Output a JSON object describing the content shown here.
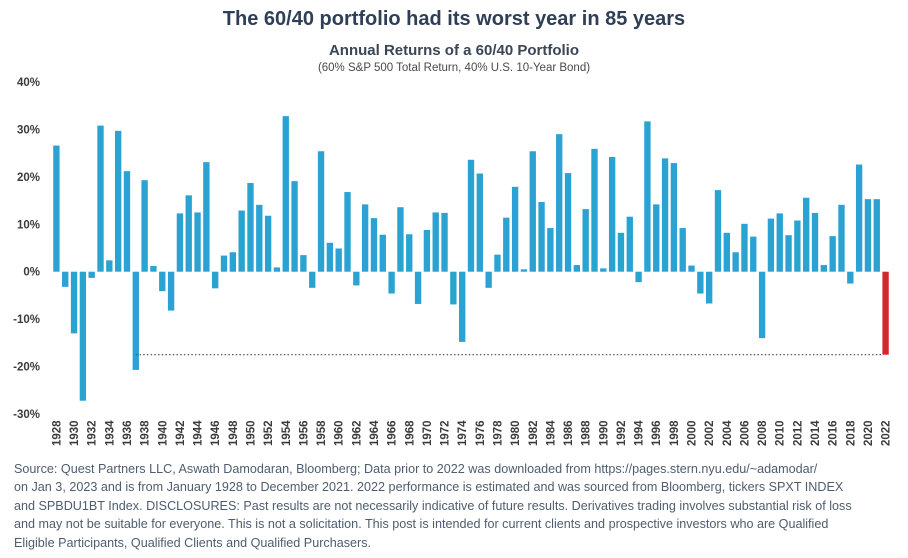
{
  "header": {
    "headline": "The 60/40 portfolio had its worst year in 85 years"
  },
  "chart_data": {
    "type": "bar",
    "title": "Annual Returns of a 60/40 Portfolio",
    "subtitle": "(60% S&P 500 Total Return, 40% U.S. 10-Year Bond)",
    "xlabel": "",
    "ylabel": "",
    "ylim": [
      -30,
      40
    ],
    "yticks": [
      -30,
      -20,
      -10,
      0,
      10,
      20,
      30,
      40
    ],
    "ytick_labels": [
      "-30%",
      "-20%",
      "-10%",
      "0%",
      "10%",
      "20%",
      "30%",
      "40%"
    ],
    "grid": false,
    "x_tick_labels": [
      "1928",
      "1930",
      "1932",
      "1934",
      "1936",
      "1938",
      "1940",
      "1942",
      "1944",
      "1946",
      "1948",
      "1950",
      "1952",
      "1954",
      "1956",
      "1958",
      "1960",
      "1962",
      "1964",
      "1966",
      "1968",
      "1970",
      "1972",
      "1974",
      "1976",
      "1978",
      "1980",
      "1982",
      "1984",
      "1986",
      "1988",
      "1990",
      "1992",
      "1994",
      "1996",
      "1998",
      "2000",
      "2002",
      "2004",
      "2006",
      "2008",
      "2010",
      "2012",
      "2014",
      "2016",
      "2018",
      "2020",
      "2022"
    ],
    "categories": [
      "1928",
      "1929",
      "1930",
      "1931",
      "1932",
      "1933",
      "1934",
      "1935",
      "1936",
      "1937",
      "1938",
      "1939",
      "1940",
      "1941",
      "1942",
      "1943",
      "1944",
      "1945",
      "1946",
      "1947",
      "1948",
      "1949",
      "1950",
      "1951",
      "1952",
      "1953",
      "1954",
      "1955",
      "1956",
      "1957",
      "1958",
      "1959",
      "1960",
      "1961",
      "1962",
      "1963",
      "1964",
      "1965",
      "1966",
      "1967",
      "1968",
      "1969",
      "1970",
      "1971",
      "1972",
      "1973",
      "1974",
      "1975",
      "1976",
      "1977",
      "1978",
      "1979",
      "1980",
      "1981",
      "1982",
      "1983",
      "1984",
      "1985",
      "1986",
      "1987",
      "1988",
      "1989",
      "1990",
      "1991",
      "1992",
      "1993",
      "1994",
      "1995",
      "1996",
      "1997",
      "1998",
      "1999",
      "2000",
      "2001",
      "2002",
      "2003",
      "2004",
      "2005",
      "2006",
      "2007",
      "2008",
      "2009",
      "2010",
      "2011",
      "2012",
      "2013",
      "2014",
      "2015",
      "2016",
      "2017",
      "2018",
      "2019",
      "2020",
      "2021",
      "2022"
    ],
    "values": [
      26.6,
      -3.2,
      -13.0,
      -27.2,
      -1.3,
      30.8,
      2.4,
      29.7,
      21.2,
      -20.7,
      19.3,
      1.2,
      -4.1,
      -8.2,
      12.3,
      16.1,
      12.5,
      23.1,
      -3.5,
      3.4,
      4.1,
      12.9,
      18.7,
      14.1,
      11.8,
      0.9,
      32.8,
      19.1,
      3.5,
      -3.4,
      25.4,
      6.1,
      4.9,
      16.8,
      -2.9,
      14.2,
      11.3,
      7.8,
      -4.6,
      13.6,
      7.9,
      -6.8,
      8.8,
      12.5,
      12.4,
      -6.9,
      -14.8,
      23.6,
      20.7,
      -3.4,
      3.6,
      11.4,
      17.9,
      0.5,
      25.4,
      14.7,
      9.2,
      29.0,
      20.8,
      1.4,
      13.2,
      25.9,
      0.7,
      24.2,
      8.2,
      11.6,
      -2.2,
      31.7,
      14.2,
      23.9,
      22.9,
      9.2,
      1.3,
      -4.6,
      -6.7,
      17.2,
      8.2,
      4.1,
      10.1,
      7.4,
      -14.0,
      11.2,
      12.3,
      7.7,
      10.8,
      15.6,
      12.4,
      1.4,
      7.5,
      14.1,
      -2.5,
      22.6,
      15.3,
      15.3,
      -17.5
    ],
    "highlight_index": 94,
    "reference_line_value": -17.5,
    "colors": {
      "bar": "#2ba3d2",
      "highlight_bar": "#d3262f",
      "reference_line": "#4a4a4a",
      "tick_text": "#3b3b3b"
    }
  },
  "footer": {
    "source_lines": [
      "Source: Quest Partners LLC, Aswath Damodaran, Bloomberg; Data prior to 2022 was downloaded from https://pages.stern.nyu.edu/~adamodar/",
      "on Jan 3, 2023 and is from January 1928 to December 2021. 2022 performance is estimated and was sourced from Bloomberg, tickers SPXT INDEX",
      "and SPBDU1BT Index. DISCLOSURES: Past results are not necessarily indicative of future results. Derivatives trading involves substantial risk of loss",
      "and may not be suitable for everyone. This is not a solicitation. This post is intended for current clients and prospective investors who are Qualified",
      "Eligible Participants, Qualified Clients and Qualified Purchasers."
    ]
  }
}
